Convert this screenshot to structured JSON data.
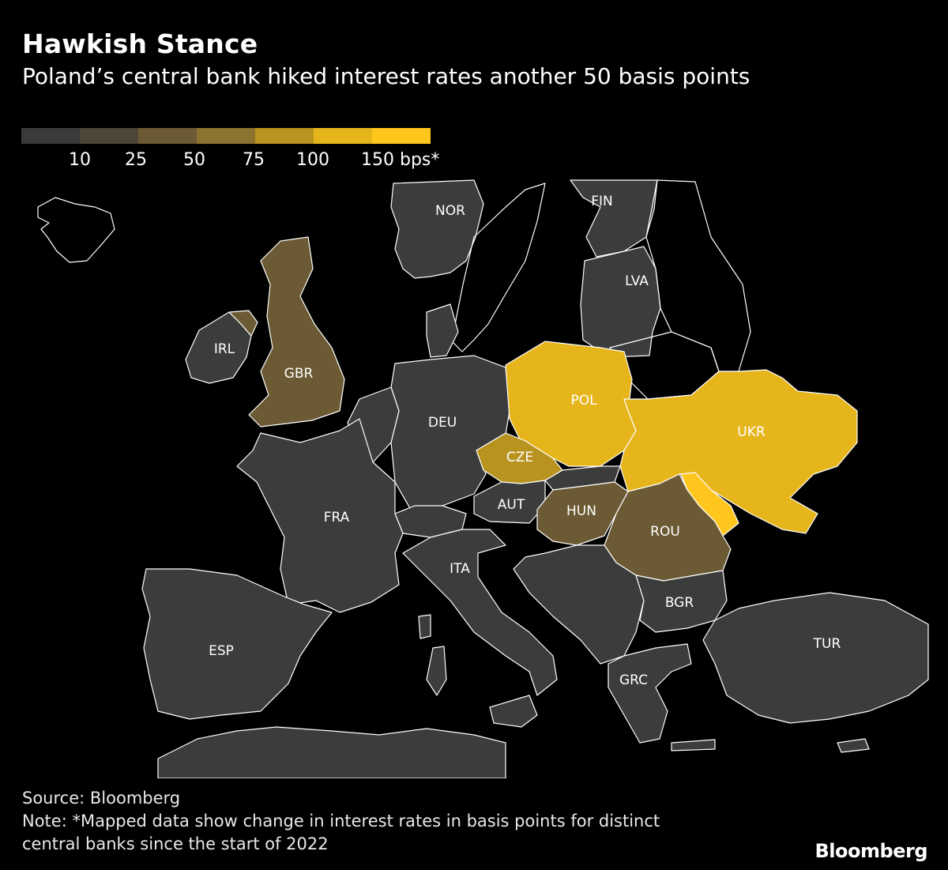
{
  "title": "Hawkish Stance",
  "subtitle": "Poland’s central bank hiked interest rates another 50 basis points",
  "legend": {
    "colors": [
      "#3a3a3a",
      "#4d4536",
      "#6b5a33",
      "#8c7430",
      "#b8931f",
      "#e6b51c",
      "#ffc61e"
    ],
    "labels": [
      "10",
      "25",
      "50",
      "75",
      "100",
      "150 bps*"
    ]
  },
  "colors": {
    "background": "#000000",
    "land": "#3c3c3c",
    "border": "#ffffff"
  },
  "countries": {
    "NOR": "NOR",
    "FIN": "FIN",
    "LVA": "LVA",
    "IRL": "IRL",
    "GBR": "GBR",
    "POL": "POL",
    "UKR": "UKR",
    "DEU": "DEU",
    "CZE": "CZE",
    "FRA": "FRA",
    "AUT": "AUT",
    "HUN": "HUN",
    "ROU": "ROU",
    "ITA": "ITA",
    "BGR": "BGR",
    "ESP": "ESP",
    "TUR": "TUR",
    "GRC": "GRC"
  },
  "footer": {
    "source": "Source: Bloomberg",
    "note_line1": "Note: *Mapped data show change in interest rates in basis points for distinct",
    "note_line2": "central banks since the start of 2022"
  },
  "brand": "Bloomberg"
}
